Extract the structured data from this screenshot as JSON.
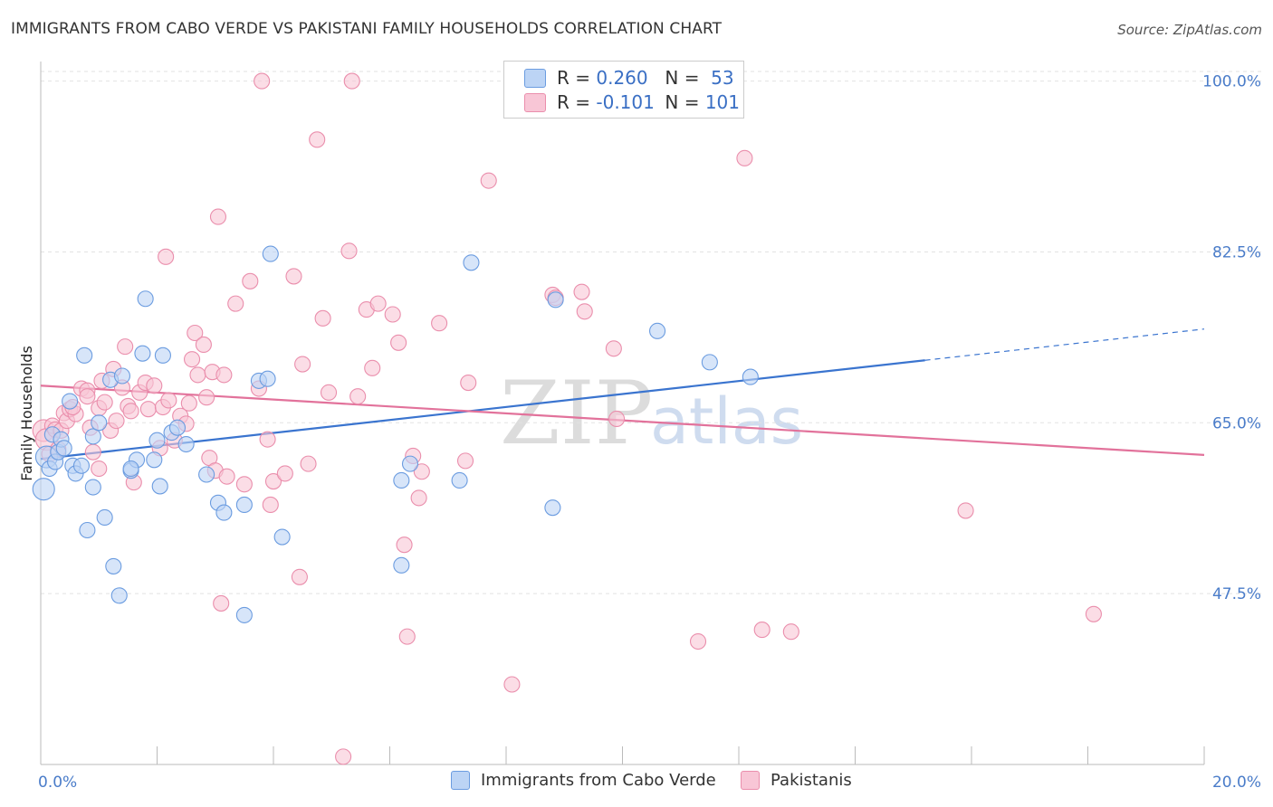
{
  "title": "IMMIGRANTS FROM CABO VERDE VS PAKISTANI FAMILY HOUSEHOLDS CORRELATION CHART",
  "source": "Source: ZipAtlas.com",
  "legend": {
    "row1": {
      "r_label": "R =",
      "r_value": "0.260",
      "n_label": "N =",
      "n_value": "53"
    },
    "row2": {
      "r_label": "R =",
      "r_value": "-0.101",
      "n_label": "N =",
      "n_value": "101"
    }
  },
  "bottom_legend": {
    "series1": "Immigrants from Cabo Verde",
    "series2": "Pakistanis"
  },
  "watermark": {
    "zip": "ZIP",
    "atlas": "atlas"
  },
  "colors": {
    "blue_fill": "#bcd4f5",
    "blue_stroke": "#6b9ce0",
    "blue_line": "#3a74cf",
    "pink_fill": "#f8c6d6",
    "pink_stroke": "#ea8eac",
    "pink_line": "#e2729b",
    "tick_text": "#4a7cc9",
    "grid": "#e2e2e2"
  },
  "chart_data": {
    "type": "scatter",
    "title": "IMMIGRANTS FROM CABO VERDE VS PAKISTANI FAMILY HOUSEHOLDS CORRELATION CHART",
    "xlabel": "",
    "ylabel": "Family Households",
    "xlim": [
      0,
      20
    ],
    "ylim": [
      30,
      102
    ],
    "x_tick_labels": [
      "0.0%",
      "20.0%"
    ],
    "y_ticks": [
      47.5,
      65.0,
      82.5,
      100.0
    ],
    "y_tick_labels": [
      "47.5%",
      "65.0%",
      "82.5%",
      "100.0%"
    ],
    "grid": true,
    "legend_position": "top-center",
    "series": [
      {
        "name": "Immigrants from Cabo Verde",
        "R": 0.26,
        "N": 53,
        "trend": {
          "x0": 0,
          "y0": 61.3,
          "x1": 15.2,
          "y1": 71.4,
          "dashed_to_x": 20,
          "dashed_to_y": 74.6
        },
        "points": [
          [
            0.05,
            58.2
          ],
          [
            0.1,
            61.5
          ],
          [
            0.15,
            60.3
          ],
          [
            0.2,
            63.8
          ],
          [
            0.25,
            61.0
          ],
          [
            0.3,
            62.0
          ],
          [
            0.35,
            63.3
          ],
          [
            0.4,
            62.4
          ],
          [
            0.5,
            67.2
          ],
          [
            0.55,
            60.6
          ],
          [
            0.6,
            59.8
          ],
          [
            0.7,
            60.6
          ],
          [
            0.75,
            71.9
          ],
          [
            0.8,
            54.0
          ],
          [
            0.9,
            58.4
          ],
          [
            0.9,
            63.6
          ],
          [
            1.0,
            65.0
          ],
          [
            1.1,
            55.3
          ],
          [
            1.2,
            69.4
          ],
          [
            1.25,
            50.3
          ],
          [
            1.35,
            47.3
          ],
          [
            1.4,
            69.8
          ],
          [
            1.55,
            60.1
          ],
          [
            1.65,
            61.2
          ],
          [
            1.75,
            72.1
          ],
          [
            1.8,
            77.7
          ],
          [
            1.95,
            61.2
          ],
          [
            2.0,
            63.2
          ],
          [
            2.05,
            58.5
          ],
          [
            2.1,
            71.9
          ],
          [
            2.25,
            64.0
          ],
          [
            2.35,
            64.5
          ],
          [
            2.5,
            62.8
          ],
          [
            2.85,
            59.7
          ],
          [
            3.05,
            56.8
          ],
          [
            3.15,
            55.8
          ],
          [
            3.5,
            56.6
          ],
          [
            3.75,
            69.3
          ],
          [
            3.9,
            69.5
          ],
          [
            3.95,
            82.3
          ],
          [
            4.15,
            53.3
          ],
          [
            6.2,
            50.4
          ],
          [
            6.2,
            59.1
          ],
          [
            6.35,
            60.8
          ],
          [
            7.2,
            59.1
          ],
          [
            7.4,
            81.4
          ],
          [
            8.8,
            56.3
          ],
          [
            8.85,
            77.6
          ],
          [
            10.6,
            74.4
          ],
          [
            11.5,
            71.2
          ],
          [
            12.2,
            69.7
          ],
          [
            3.5,
            45.3
          ],
          [
            1.55,
            60.3
          ]
        ]
      },
      {
        "name": "Pakistanis",
        "R": -0.101,
        "N": 101,
        "trend": {
          "x0": 0,
          "y0": 68.8,
          "x1": 20,
          "y1": 61.7
        },
        "points": [
          [
            0.05,
            64.2
          ],
          [
            0.1,
            63.3
          ],
          [
            0.15,
            61.8
          ],
          [
            0.2,
            64.7
          ],
          [
            0.25,
            64.3
          ],
          [
            0.3,
            62.3
          ],
          [
            0.35,
            64.2
          ],
          [
            0.4,
            66.0
          ],
          [
            0.45,
            65.2
          ],
          [
            0.5,
            66.4
          ],
          [
            0.6,
            65.9
          ],
          [
            0.7,
            68.5
          ],
          [
            0.8,
            68.3
          ],
          [
            0.85,
            64.5
          ],
          [
            0.9,
            62.0
          ],
          [
            1.0,
            66.5
          ],
          [
            1.05,
            69.3
          ],
          [
            1.1,
            67.1
          ],
          [
            1.2,
            64.2
          ],
          [
            1.25,
            70.5
          ],
          [
            1.3,
            65.2
          ],
          [
            1.4,
            68.6
          ],
          [
            1.45,
            72.8
          ],
          [
            1.5,
            66.7
          ],
          [
            1.55,
            66.2
          ],
          [
            1.6,
            58.9
          ],
          [
            1.7,
            68.1
          ],
          [
            1.8,
            69.1
          ],
          [
            1.85,
            66.4
          ],
          [
            1.95,
            68.8
          ],
          [
            2.05,
            62.4
          ],
          [
            2.1,
            66.6
          ],
          [
            2.2,
            67.3
          ],
          [
            2.3,
            63.2
          ],
          [
            2.4,
            65.7
          ],
          [
            2.5,
            64.9
          ],
          [
            2.55,
            67.0
          ],
          [
            2.6,
            71.5
          ],
          [
            2.65,
            74.2
          ],
          [
            2.7,
            69.9
          ],
          [
            2.8,
            73.0
          ],
          [
            2.85,
            67.6
          ],
          [
            2.9,
            61.4
          ],
          [
            2.95,
            70.2
          ],
          [
            3.0,
            60.1
          ],
          [
            3.05,
            86.1
          ],
          [
            3.1,
            46.5
          ],
          [
            3.15,
            69.9
          ],
          [
            3.2,
            59.5
          ],
          [
            3.35,
            77.2
          ],
          [
            3.5,
            58.7
          ],
          [
            3.6,
            79.5
          ],
          [
            3.75,
            68.5
          ],
          [
            3.8,
            100.0
          ],
          [
            3.9,
            63.3
          ],
          [
            3.95,
            56.6
          ],
          [
            4.0,
            59.0
          ],
          [
            4.2,
            59.8
          ],
          [
            4.35,
            80.0
          ],
          [
            4.45,
            49.2
          ],
          [
            4.5,
            71.0
          ],
          [
            4.6,
            60.8
          ],
          [
            4.75,
            94.0
          ],
          [
            4.85,
            75.7
          ],
          [
            4.95,
            68.1
          ],
          [
            5.2,
            30.8
          ],
          [
            5.3,
            82.6
          ],
          [
            5.35,
            100.0
          ],
          [
            5.45,
            67.7
          ],
          [
            5.6,
            76.6
          ],
          [
            5.7,
            70.6
          ],
          [
            5.8,
            77.2
          ],
          [
            6.05,
            76.1
          ],
          [
            6.15,
            73.2
          ],
          [
            6.25,
            52.5
          ],
          [
            6.3,
            43.1
          ],
          [
            6.4,
            61.6
          ],
          [
            6.5,
            57.3
          ],
          [
            6.55,
            60.0
          ],
          [
            6.85,
            75.2
          ],
          [
            7.3,
            61.1
          ],
          [
            7.35,
            69.1
          ],
          [
            7.7,
            89.8
          ],
          [
            8.1,
            38.2
          ],
          [
            8.2,
            100.0
          ],
          [
            8.8,
            78.1
          ],
          [
            8.85,
            77.8
          ],
          [
            9.3,
            78.4
          ],
          [
            9.35,
            76.4
          ],
          [
            9.85,
            72.6
          ],
          [
            9.9,
            65.4
          ],
          [
            11.3,
            42.6
          ],
          [
            12.1,
            92.1
          ],
          [
            12.4,
            43.8
          ],
          [
            12.9,
            43.6
          ],
          [
            15.9,
            56.0
          ],
          [
            18.1,
            45.4
          ],
          [
            2.15,
            82.0
          ],
          [
            0.55,
            66.6
          ],
          [
            1.0,
            60.3
          ],
          [
            0.8,
            67.7
          ]
        ]
      }
    ]
  }
}
